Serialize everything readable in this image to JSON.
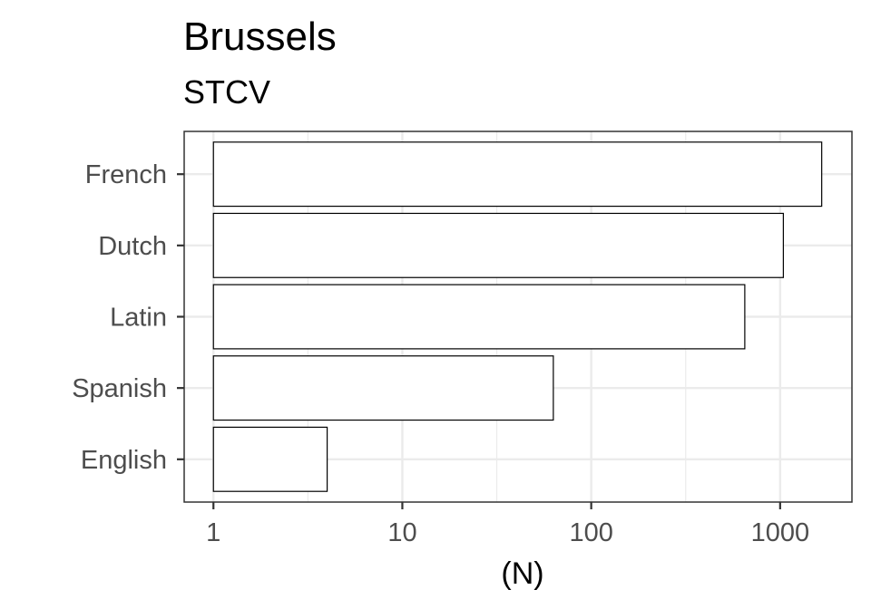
{
  "chart_data": {
    "type": "bar",
    "orientation": "horizontal",
    "title": "Brussels",
    "subtitle": "STCV",
    "xlabel": "(N)",
    "ylabel": "",
    "x_scale": "log10",
    "xlim": [
      0.7,
      2400
    ],
    "x_ticks": [
      {
        "value": 1,
        "label": "1"
      },
      {
        "value": 10,
        "label": "10"
      },
      {
        "value": 100,
        "label": "100"
      },
      {
        "value": 1000,
        "label": "1000"
      }
    ],
    "categories": [
      "French",
      "Dutch",
      "Latin",
      "Spanish",
      "English"
    ],
    "values": [
      1660,
      1040,
      650,
      63,
      4
    ],
    "grid": true,
    "legend": "none",
    "bar_fill": "#ffffff",
    "bar_stroke": "#000000",
    "panel_border": "#333333",
    "grid_color": "#ebebeb"
  }
}
